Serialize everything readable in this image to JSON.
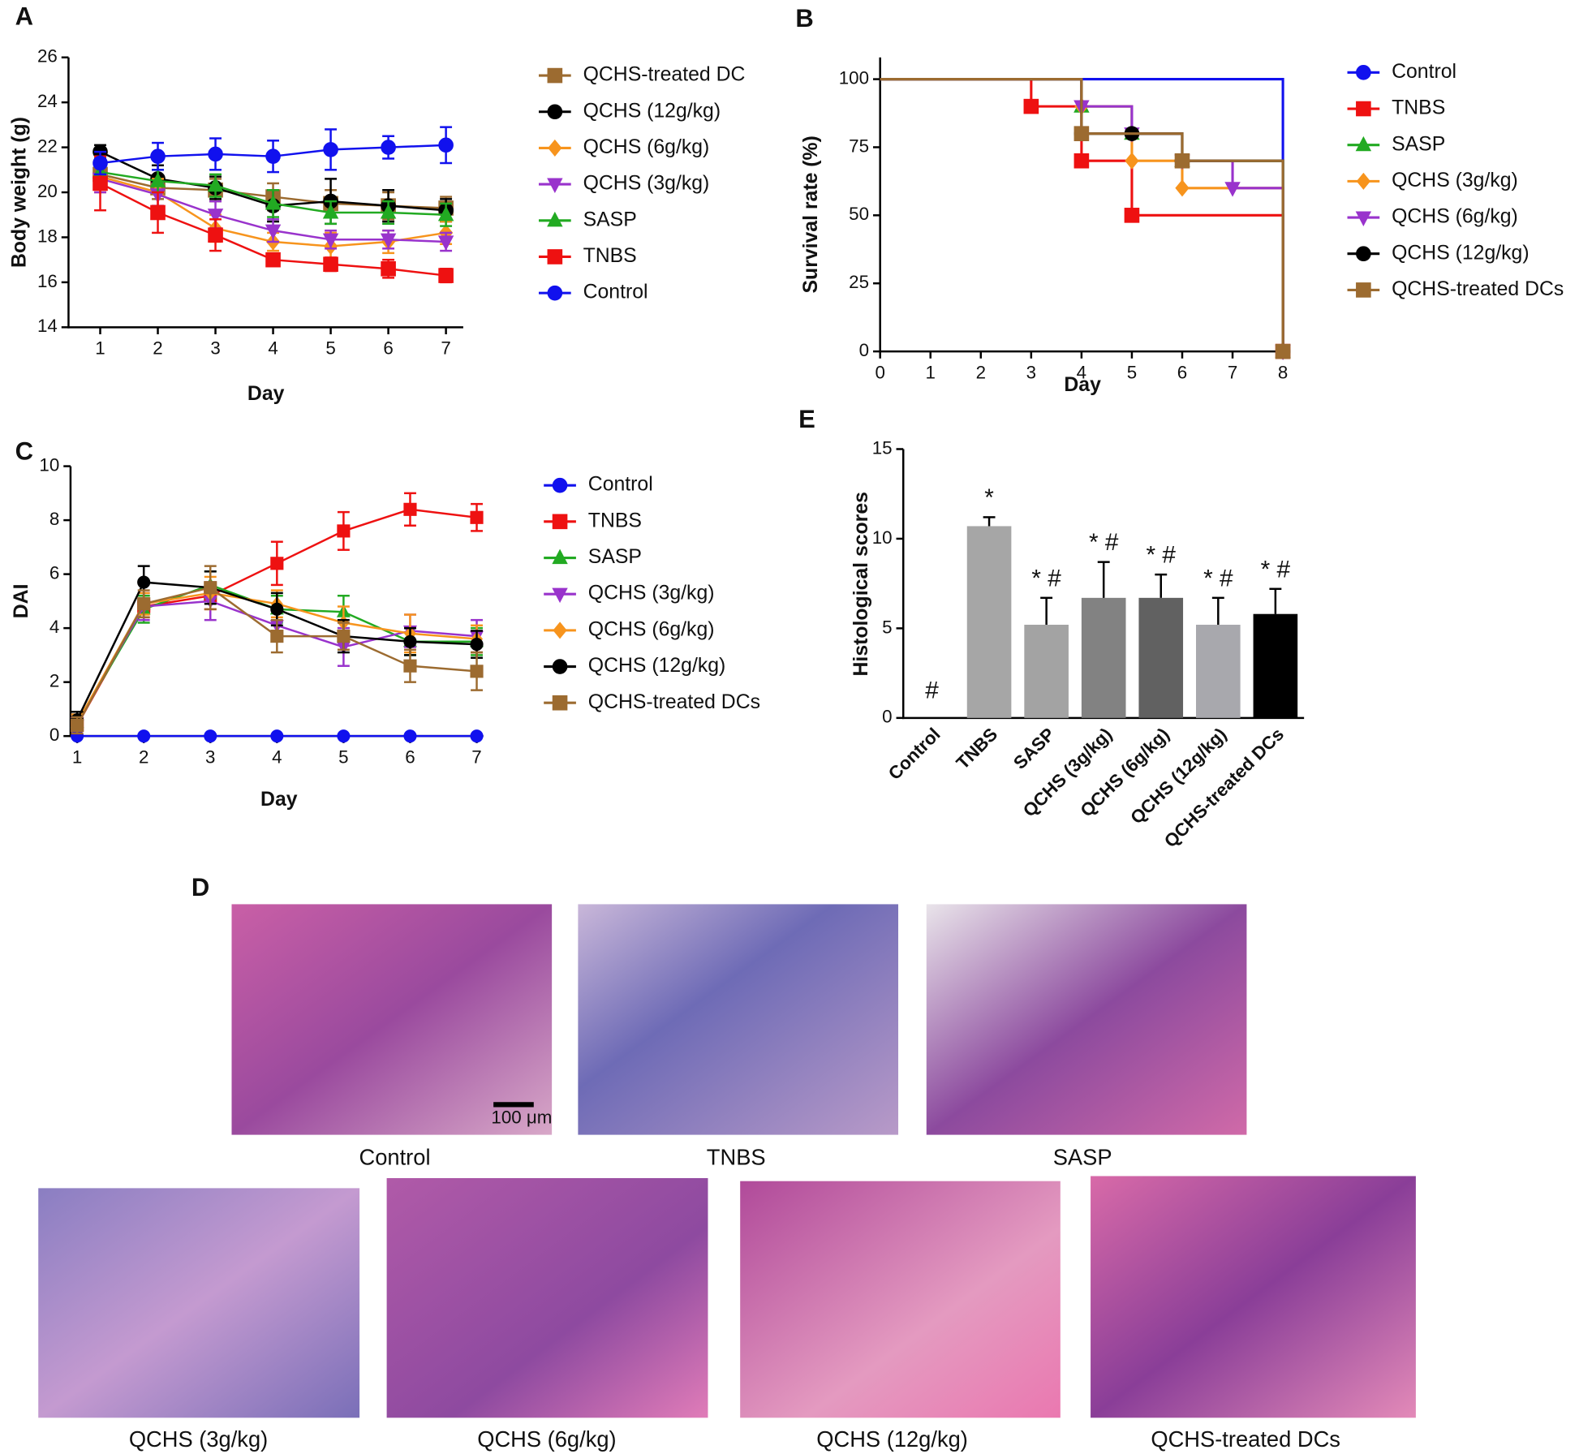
{
  "chart_data": [
    {
      "panel": "A",
      "type": "line",
      "xlabel": "Day",
      "ylabel": "Body weight (g)",
      "x": [
        1,
        2,
        3,
        4,
        5,
        6,
        7
      ],
      "xlim": [
        0.45,
        7.3
      ],
      "xticks": [
        1,
        2,
        3,
        4,
        5,
        6,
        7
      ],
      "ylim": [
        14,
        26
      ],
      "yticks": [
        14,
        16,
        18,
        20,
        22,
        24,
        26
      ],
      "series": [
        {
          "name": "QCHS-treated DC",
          "color": "#9c6b30",
          "marker": "square",
          "values": [
            20.8,
            20.2,
            20.1,
            19.8,
            19.5,
            19.4,
            19.3
          ],
          "errors": [
            0.6,
            0.5,
            0.5,
            0.6,
            0.6,
            0.6,
            0.5
          ]
        },
        {
          "name": "QCHS (12g/kg)",
          "color": "#000000",
          "marker": "circle",
          "values": [
            21.8,
            20.6,
            20.2,
            19.4,
            19.6,
            19.4,
            19.2
          ],
          "errors": [
            0.3,
            0.6,
            0.5,
            0.7,
            1.0,
            0.7,
            0.5
          ]
        },
        {
          "name": "QCHS (6g/kg)",
          "color": "#f7941d",
          "marker": "diamond",
          "values": [
            20.7,
            20.0,
            18.4,
            17.8,
            17.6,
            17.8,
            18.2
          ],
          "errors": [
            0.7,
            0.6,
            0.6,
            0.4,
            0.6,
            0.5,
            0.5
          ]
        },
        {
          "name": "QCHS (3g/kg)",
          "color": "#9933cc",
          "marker": "triangle-down",
          "values": [
            20.6,
            19.9,
            19.0,
            18.3,
            17.9,
            17.9,
            17.8
          ],
          "errors": [
            0.6,
            0.5,
            0.6,
            0.5,
            0.4,
            0.4,
            0.4
          ]
        },
        {
          "name": "SASP",
          "color": "#22aa22",
          "marker": "triangle-up",
          "values": [
            20.9,
            20.5,
            20.3,
            19.5,
            19.1,
            19.1,
            19.0
          ],
          "errors": [
            0.5,
            0.5,
            0.5,
            0.6,
            0.5,
            0.5,
            0.5
          ]
        },
        {
          "name": "TNBS",
          "color": "#ee1111",
          "marker": "square",
          "values": [
            20.4,
            19.1,
            18.1,
            17.0,
            16.8,
            16.6,
            16.3
          ],
          "errors": [
            1.2,
            0.9,
            0.7,
            0.2,
            0.3,
            0.4,
            0.3
          ]
        },
        {
          "name": "Control",
          "color": "#1111ee",
          "marker": "circle",
          "values": [
            21.3,
            21.6,
            21.7,
            21.6,
            21.9,
            22.0,
            22.1
          ],
          "errors": [
            0.5,
            0.6,
            0.7,
            0.7,
            0.9,
            0.5,
            0.8
          ]
        }
      ]
    },
    {
      "panel": "B",
      "type": "step",
      "xlabel": "Day",
      "ylabel": "Survival rate (%)",
      "xlim": [
        0,
        8
      ],
      "xticks": [
        0,
        1,
        2,
        3,
        4,
        5,
        6,
        7,
        8
      ],
      "ylim": [
        0,
        108
      ],
      "yticks": [
        0,
        25,
        50,
        75,
        100
      ],
      "series": [
        {
          "name": "Control",
          "color": "#1111ee",
          "marker": "circle",
          "x": [
            0,
            8
          ],
          "values": [
            100,
            0
          ]
        },
        {
          "name": "TNBS",
          "color": "#ee1111",
          "marker": "square",
          "x": [
            0,
            3,
            4,
            5,
            8
          ],
          "values": [
            100,
            90,
            70,
            50,
            0
          ]
        },
        {
          "name": "SASP",
          "color": "#22aa22",
          "marker": "triangle-up",
          "x": [
            0,
            4,
            5,
            6,
            8
          ],
          "values": [
            100,
            90,
            80,
            70,
            0
          ]
        },
        {
          "name": "QCHS (3g/kg)",
          "color": "#f7941d",
          "marker": "diamond",
          "x": [
            0,
            4,
            5,
            6,
            8
          ],
          "values": [
            100,
            90,
            70,
            60,
            0
          ]
        },
        {
          "name": "QCHS (6g/kg)",
          "color": "#9933cc",
          "marker": "triangle-down",
          "x": [
            0,
            4,
            5,
            6,
            7,
            8
          ],
          "values": [
            100,
            90,
            80,
            70,
            60,
            0
          ]
        },
        {
          "name": "QCHS (12g/kg)",
          "color": "#000000",
          "marker": "circle",
          "x": [
            0,
            4,
            5,
            6,
            8
          ],
          "values": [
            100,
            80,
            80,
            70,
            0
          ]
        },
        {
          "name": "QCHS-treated DCs",
          "color": "#9c6b30",
          "marker": "square",
          "x": [
            0,
            4,
            6,
            8
          ],
          "values": [
            100,
            80,
            70,
            0
          ]
        }
      ]
    },
    {
      "panel": "C",
      "type": "line",
      "xlabel": "Day",
      "ylabel": "DAI",
      "x": [
        1,
        2,
        3,
        4,
        5,
        6,
        7
      ],
      "xlim": [
        0.9,
        7.1
      ],
      "xticks": [
        1,
        2,
        3,
        4,
        5,
        6,
        7
      ],
      "ylim": [
        0,
        10
      ],
      "yticks": [
        0,
        2,
        4,
        6,
        8,
        10
      ],
      "series": [
        {
          "name": "Control",
          "color": "#1111ee",
          "marker": "circle",
          "values": [
            0,
            0,
            0,
            0,
            0,
            0,
            0
          ]
        },
        {
          "name": "TNBS",
          "color": "#ee1111",
          "marker": "square",
          "values": [
            0.4,
            4.8,
            5.2,
            6.4,
            7.6,
            8.4,
            8.1
          ],
          "errors": [
            0.3,
            0.4,
            0.5,
            0.8,
            0.7,
            0.6,
            0.5
          ]
        },
        {
          "name": "SASP",
          "color": "#22aa22",
          "marker": "triangle-up",
          "values": [
            0.5,
            4.7,
            5.6,
            4.7,
            4.6,
            3.5,
            3.5
          ],
          "errors": [
            0.3,
            0.5,
            0.5,
            0.5,
            0.6,
            0.5,
            0.5
          ]
        },
        {
          "name": "QCHS (3g/kg)",
          "color": "#9933cc",
          "marker": "triangle-down",
          "values": [
            0.5,
            4.8,
            5.0,
            4.1,
            3.3,
            3.9,
            3.7
          ],
          "errors": [
            0.3,
            0.5,
            0.7,
            0.6,
            0.7,
            0.6,
            0.6
          ]
        },
        {
          "name": "QCHS (6g/kg)",
          "color": "#f7941d",
          "marker": "diamond",
          "values": [
            0.5,
            4.9,
            5.3,
            4.9,
            4.2,
            3.8,
            3.6
          ],
          "errors": [
            0.3,
            0.4,
            0.6,
            0.5,
            0.6,
            0.7,
            0.5
          ]
        },
        {
          "name": "QCHS (12g/kg)",
          "color": "#000000",
          "marker": "circle",
          "values": [
            0.6,
            5.7,
            5.5,
            4.7,
            3.7,
            3.5,
            3.4
          ],
          "errors": [
            0.3,
            0.6,
            0.6,
            0.6,
            0.6,
            0.5,
            0.5
          ]
        },
        {
          "name": "QCHS-treated DCs",
          "color": "#9c6b30",
          "marker": "square",
          "values": [
            0.4,
            4.9,
            5.5,
            3.7,
            3.7,
            2.6,
            2.4
          ],
          "errors": [
            0.3,
            0.5,
            0.8,
            0.6,
            0.5,
            0.6,
            0.7
          ]
        }
      ]
    },
    {
      "panel": "E",
      "type": "bar",
      "ylabel": "Histological scores",
      "categories": [
        "Control",
        "TNBS",
        "SASP",
        "QCHS (3g/kg)",
        "QCHS (6g/kg)",
        "QCHS (12g/kg)",
        "QCHS-treated DCs"
      ],
      "values": [
        0,
        10.7,
        5.2,
        6.7,
        6.7,
        5.2,
        5.8
      ],
      "errors": [
        0,
        0.5,
        1.5,
        2.0,
        1.3,
        1.5,
        1.4
      ],
      "annotations": [
        "#",
        "*",
        "* #",
        "* #",
        "* #",
        "* #",
        "* #"
      ],
      "colors": [
        "#a0a0a0",
        "#a6a6a6",
        "#a3a3a3",
        "#828282",
        "#616161",
        "#a8a8ad",
        "#000000"
      ],
      "ylim": [
        0,
        15
      ],
      "yticks": [
        0,
        5,
        10,
        15
      ]
    }
  ],
  "histology": {
    "panel": "D",
    "scale_bar": "100 μm",
    "labels": [
      "Control",
      "TNBS",
      "SASP",
      "QCHS (3g/kg)",
      "QCHS (6g/kg)",
      "QCHS (12g/kg)",
      "QCHS-treated DCs"
    ]
  }
}
